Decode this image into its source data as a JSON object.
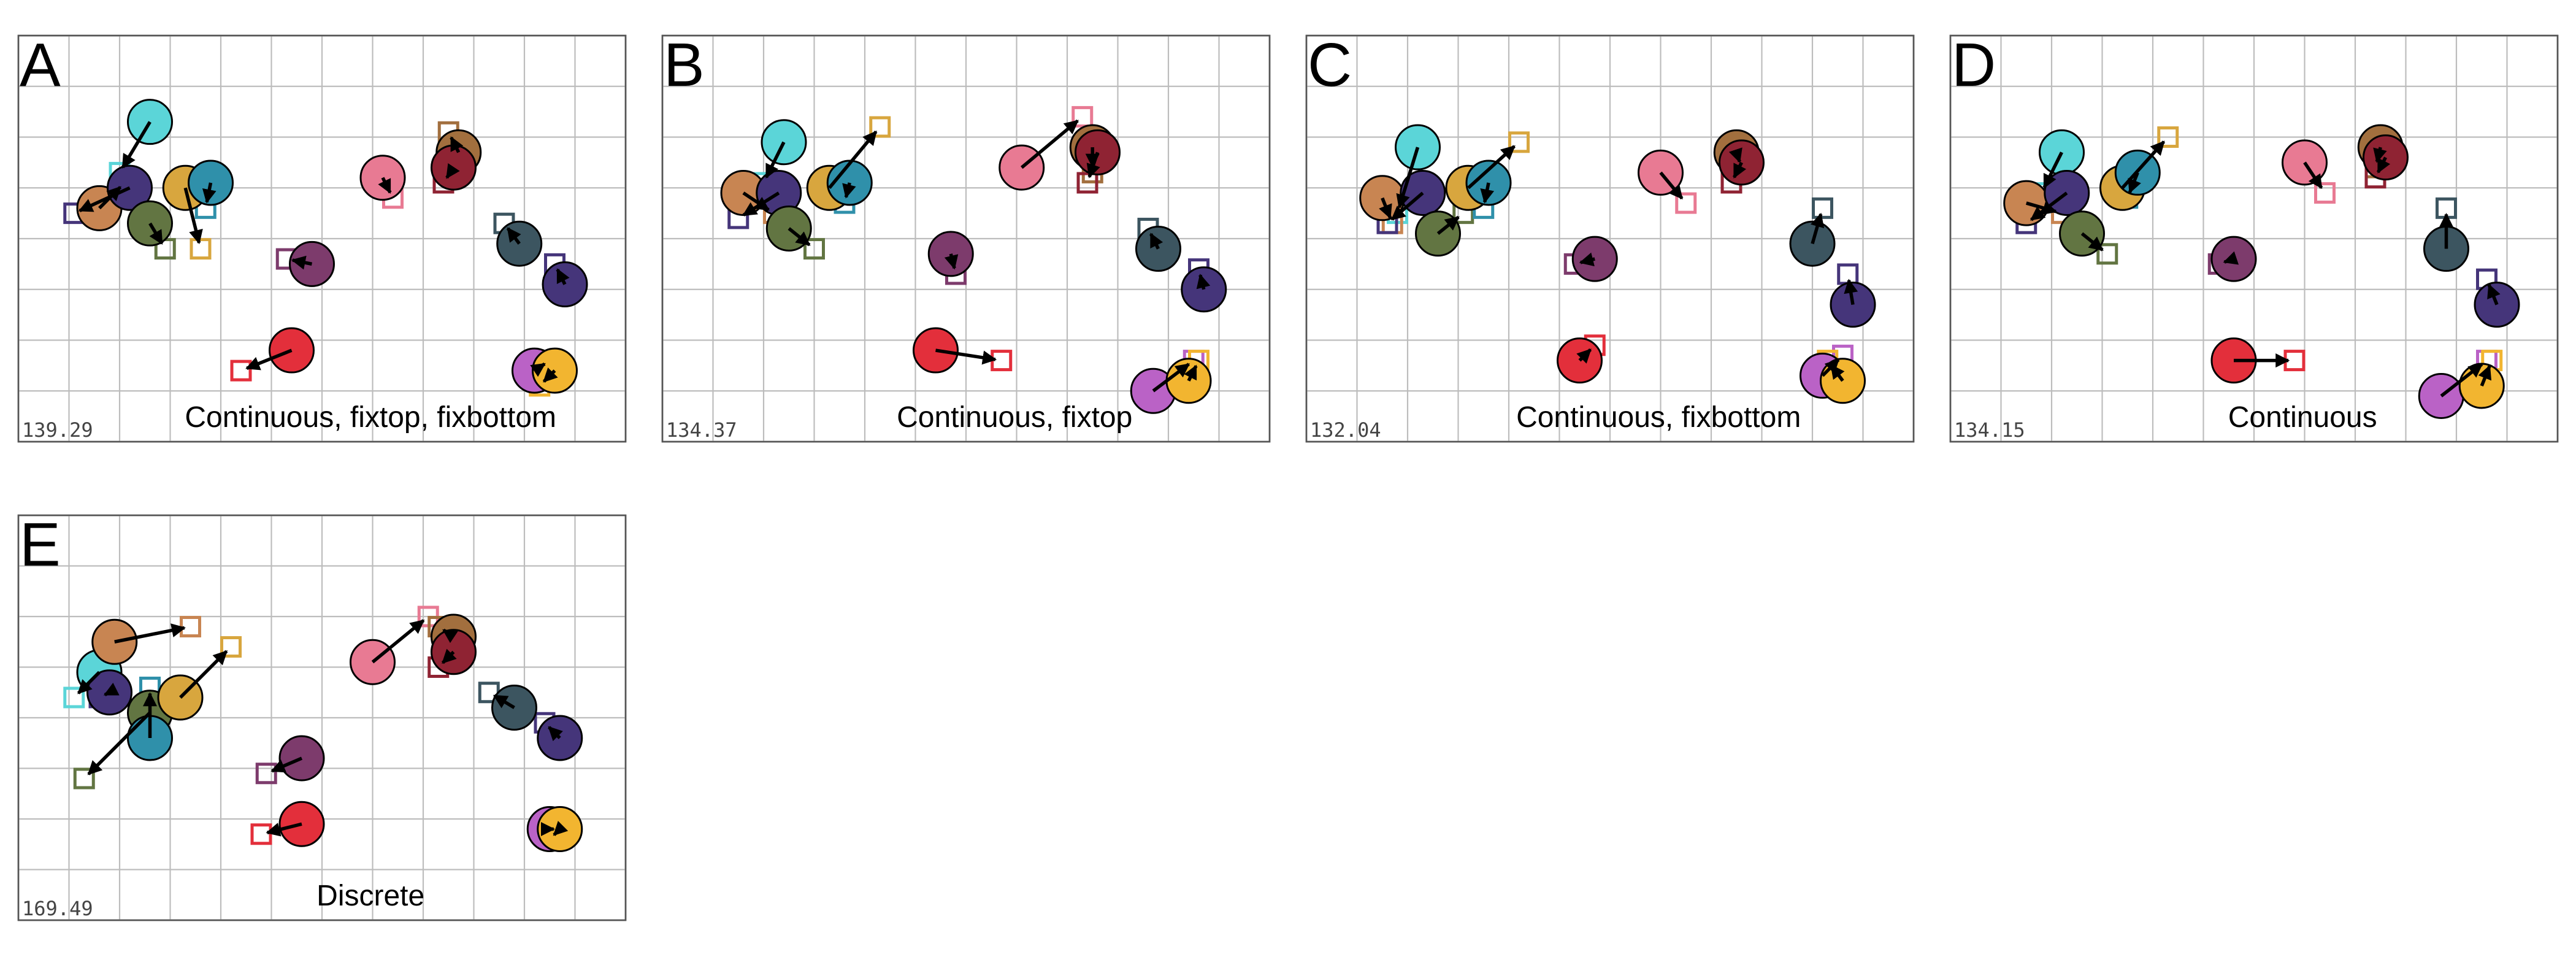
{
  "chart_data": [
    {
      "type": "scatter",
      "panel_label": "A",
      "caption": "Continuous, fixtop, fixbottom",
      "stress": "139.29",
      "xlim": [
        0,
        12
      ],
      "ylim": [
        0,
        8
      ],
      "grid": true,
      "points": [
        {
          "color": "#5bd5d8",
          "x": 2.6,
          "y": 6.3,
          "tx": 2.0,
          "ty": 5.3
        },
        {
          "color": "#c88552",
          "x": 1.6,
          "y": 4.6,
          "tx": 2.1,
          "ty": 5.1
        },
        {
          "color": "#45357a",
          "x": 2.2,
          "y": 5.0,
          "tx": 1.1,
          "ty": 4.5
        },
        {
          "color": "#627542",
          "x": 2.6,
          "y": 4.3,
          "tx": 2.9,
          "ty": 3.8
        },
        {
          "color": "#d8a63e",
          "x": 3.3,
          "y": 5.0,
          "tx": 3.6,
          "ty": 3.8
        },
        {
          "color": "#2f90aa",
          "x": 3.8,
          "y": 5.1,
          "tx": 3.7,
          "ty": 4.6
        },
        {
          "color": "#e87a93",
          "x": 7.2,
          "y": 5.2,
          "tx": 7.4,
          "ty": 4.8
        },
        {
          "color": "#a26f3e",
          "x": 8.7,
          "y": 5.7,
          "tx": 8.5,
          "ty": 6.1
        },
        {
          "color": "#8f2333",
          "x": 8.6,
          "y": 5.4,
          "tx": 8.4,
          "ty": 5.1
        },
        {
          "color": "#7d3b6c",
          "x": 5.8,
          "y": 3.5,
          "tx": 5.3,
          "ty": 3.6
        },
        {
          "color": "#3c5560",
          "x": 9.9,
          "y": 3.9,
          "tx": 9.6,
          "ty": 4.3
        },
        {
          "color": "#45357a",
          "x": 10.8,
          "y": 3.1,
          "tx": 10.6,
          "ty": 3.5
        },
        {
          "color": "#e32f3b",
          "x": 5.4,
          "y": 1.8,
          "tx": 4.4,
          "ty": 1.4
        },
        {
          "color": "#ba62c6",
          "x": 10.2,
          "y": 1.4,
          "tx": 10.5,
          "ty": 1.6
        },
        {
          "color": "#f2b530",
          "x": 10.6,
          "y": 1.4,
          "tx": 10.3,
          "ty": 1.1
        }
      ]
    },
    {
      "type": "scatter",
      "panel_label": "B",
      "caption": "Continuous, fixtop",
      "stress": "134.37",
      "xlim": [
        0,
        12
      ],
      "ylim": [
        0,
        8
      ],
      "grid": true,
      "points": [
        {
          "color": "#5bd5d8",
          "x": 2.4,
          "y": 5.9,
          "tx": 2.0,
          "ty": 5.1
        },
        {
          "color": "#c88552",
          "x": 1.6,
          "y": 4.9,
          "tx": 2.2,
          "ty": 4.5
        },
        {
          "color": "#45357a",
          "x": 2.3,
          "y": 4.9,
          "tx": 1.5,
          "ty": 4.4
        },
        {
          "color": "#627542",
          "x": 2.5,
          "y": 4.2,
          "tx": 3.0,
          "ty": 3.8
        },
        {
          "color": "#d8a63e",
          "x": 3.3,
          "y": 5.0,
          "tx": 4.3,
          "ty": 6.2
        },
        {
          "color": "#2f90aa",
          "x": 3.7,
          "y": 5.1,
          "tx": 3.6,
          "ty": 4.7
        },
        {
          "color": "#e87a93",
          "x": 7.1,
          "y": 5.4,
          "tx": 8.3,
          "ty": 6.4
        },
        {
          "color": "#a26f3e",
          "x": 8.5,
          "y": 5.8,
          "tx": 8.5,
          "ty": 5.3
        },
        {
          "color": "#8f2333",
          "x": 8.6,
          "y": 5.7,
          "tx": 8.4,
          "ty": 5.1
        },
        {
          "color": "#7d3b6c",
          "x": 5.7,
          "y": 3.7,
          "tx": 5.8,
          "ty": 3.3
        },
        {
          "color": "#3c5560",
          "x": 9.8,
          "y": 3.8,
          "tx": 9.6,
          "ty": 4.2
        },
        {
          "color": "#45357a",
          "x": 10.7,
          "y": 3.0,
          "tx": 10.6,
          "ty": 3.4
        },
        {
          "color": "#e32f3b",
          "x": 5.4,
          "y": 1.8,
          "tx": 6.7,
          "ty": 1.6
        },
        {
          "color": "#ba62c6",
          "x": 9.7,
          "y": 1.0,
          "tx": 10.5,
          "ty": 1.6
        },
        {
          "color": "#f2b530",
          "x": 10.4,
          "y": 1.2,
          "tx": 10.6,
          "ty": 1.6
        }
      ]
    },
    {
      "type": "scatter",
      "panel_label": "C",
      "caption": "Continuous, fixbottom",
      "stress": "132.04",
      "xlim": [
        0,
        12
      ],
      "ylim": [
        0,
        8
      ],
      "grid": true,
      "points": [
        {
          "color": "#5bd5d8",
          "x": 2.2,
          "y": 5.8,
          "tx": 1.8,
          "ty": 4.5
        },
        {
          "color": "#c88552",
          "x": 1.5,
          "y": 4.8,
          "tx": 1.7,
          "ty": 4.3
        },
        {
          "color": "#45357a",
          "x": 2.3,
          "y": 4.9,
          "tx": 1.6,
          "ty": 4.3
        },
        {
          "color": "#627542",
          "x": 2.6,
          "y": 4.1,
          "tx": 3.1,
          "ty": 4.5
        },
        {
          "color": "#d8a63e",
          "x": 3.2,
          "y": 5.0,
          "tx": 4.2,
          "ty": 5.9
        },
        {
          "color": "#2f90aa",
          "x": 3.6,
          "y": 5.1,
          "tx": 3.5,
          "ty": 4.6
        },
        {
          "color": "#e87a93",
          "x": 7.0,
          "y": 5.3,
          "tx": 7.5,
          "ty": 4.7
        },
        {
          "color": "#a26f3e",
          "x": 8.5,
          "y": 5.7,
          "tx": 8.6,
          "ty": 5.4
        },
        {
          "color": "#8f2333",
          "x": 8.6,
          "y": 5.5,
          "tx": 8.4,
          "ty": 5.1
        },
        {
          "color": "#7d3b6c",
          "x": 5.7,
          "y": 3.6,
          "tx": 5.3,
          "ty": 3.5
        },
        {
          "color": "#3c5560",
          "x": 10.0,
          "y": 3.9,
          "tx": 10.2,
          "ty": 4.6
        },
        {
          "color": "#45357a",
          "x": 10.8,
          "y": 2.7,
          "tx": 10.7,
          "ty": 3.3
        },
        {
          "color": "#e32f3b",
          "x": 5.4,
          "y": 1.6,
          "tx": 5.7,
          "ty": 1.9
        },
        {
          "color": "#ba62c6",
          "x": 10.2,
          "y": 1.3,
          "tx": 10.6,
          "ty": 1.7
        },
        {
          "color": "#f2b530",
          "x": 10.6,
          "y": 1.2,
          "tx": 10.3,
          "ty": 1.6
        }
      ]
    },
    {
      "type": "scatter",
      "panel_label": "D",
      "caption": "Continuous",
      "stress": "134.15",
      "xlim": [
        0,
        12
      ],
      "ylim": [
        0,
        8
      ],
      "grid": true,
      "points": [
        {
          "color": "#5bd5d8",
          "x": 2.2,
          "y": 5.7,
          "tx": 1.8,
          "ty": 4.9
        },
        {
          "color": "#c88552",
          "x": 1.5,
          "y": 4.7,
          "tx": 2.2,
          "ty": 4.5
        },
        {
          "color": "#45357a",
          "x": 2.3,
          "y": 4.9,
          "tx": 1.5,
          "ty": 4.3
        },
        {
          "color": "#627542",
          "x": 2.6,
          "y": 4.1,
          "tx": 3.1,
          "ty": 3.7
        },
        {
          "color": "#d8a63e",
          "x": 3.4,
          "y": 5.0,
          "tx": 4.3,
          "ty": 6.0
        },
        {
          "color": "#2f90aa",
          "x": 3.7,
          "y": 5.3,
          "tx": 3.5,
          "ty": 4.8
        },
        {
          "color": "#e87a93",
          "x": 7.0,
          "y": 5.5,
          "tx": 7.4,
          "ty": 4.9
        },
        {
          "color": "#a26f3e",
          "x": 8.5,
          "y": 5.8,
          "tx": 8.4,
          "ty": 5.4
        },
        {
          "color": "#8f2333",
          "x": 8.6,
          "y": 5.6,
          "tx": 8.4,
          "ty": 5.2
        },
        {
          "color": "#7d3b6c",
          "x": 5.6,
          "y": 3.6,
          "tx": 5.3,
          "ty": 3.5
        },
        {
          "color": "#3c5560",
          "x": 9.8,
          "y": 3.8,
          "tx": 9.8,
          "ty": 4.6
        },
        {
          "color": "#45357a",
          "x": 10.8,
          "y": 2.7,
          "tx": 10.6,
          "ty": 3.2
        },
        {
          "color": "#e32f3b",
          "x": 5.6,
          "y": 1.6,
          "tx": 6.8,
          "ty": 1.6
        },
        {
          "color": "#ba62c6",
          "x": 9.7,
          "y": 0.9,
          "tx": 10.6,
          "ty": 1.6
        },
        {
          "color": "#f2b530",
          "x": 10.5,
          "y": 1.1,
          "tx": 10.7,
          "ty": 1.6
        }
      ]
    },
    {
      "type": "scatter",
      "panel_label": "E",
      "caption": "Discrete",
      "stress": "169.49",
      "xlim": [
        0,
        12
      ],
      "ylim": [
        0,
        8
      ],
      "grid": true,
      "points": [
        {
          "color": "#5bd5d8",
          "x": 1.6,
          "y": 4.9,
          "tx": 1.1,
          "ty": 4.4
        },
        {
          "color": "#c88552",
          "x": 1.9,
          "y": 5.5,
          "tx": 3.4,
          "ty": 5.8
        },
        {
          "color": "#45357a",
          "x": 1.8,
          "y": 4.5,
          "tx": 1.6,
          "ty": 4.4
        },
        {
          "color": "#627542",
          "x": 2.6,
          "y": 4.1,
          "tx": 1.3,
          "ty": 2.8
        },
        {
          "color": "#d8a63e",
          "x": 3.2,
          "y": 4.4,
          "tx": 4.2,
          "ty": 5.4
        },
        {
          "color": "#2f90aa",
          "x": 2.6,
          "y": 3.6,
          "tx": 2.6,
          "ty": 4.6
        },
        {
          "color": "#e87a93",
          "x": 7.0,
          "y": 5.1,
          "tx": 8.1,
          "ty": 6.0
        },
        {
          "color": "#a26f3e",
          "x": 8.6,
          "y": 5.6,
          "tx": 8.3,
          "ty": 5.8
        },
        {
          "color": "#8f2333",
          "x": 8.6,
          "y": 5.3,
          "tx": 8.3,
          "ty": 5.0
        },
        {
          "color": "#7d3b6c",
          "x": 5.6,
          "y": 3.2,
          "tx": 4.9,
          "ty": 2.9
        },
        {
          "color": "#3c5560",
          "x": 9.8,
          "y": 4.2,
          "tx": 9.3,
          "ty": 4.5
        },
        {
          "color": "#45357a",
          "x": 10.7,
          "y": 3.6,
          "tx": 10.4,
          "ty": 3.9
        },
        {
          "color": "#e32f3b",
          "x": 5.6,
          "y": 1.9,
          "tx": 4.8,
          "ty": 1.7
        },
        {
          "color": "#ba62c6",
          "x": 10.5,
          "y": 1.8,
          "tx": 10.7,
          "ty": 1.8
        },
        {
          "color": "#f2b530",
          "x": 10.7,
          "y": 1.8,
          "tx": 10.5,
          "ty": 1.6
        }
      ]
    }
  ]
}
